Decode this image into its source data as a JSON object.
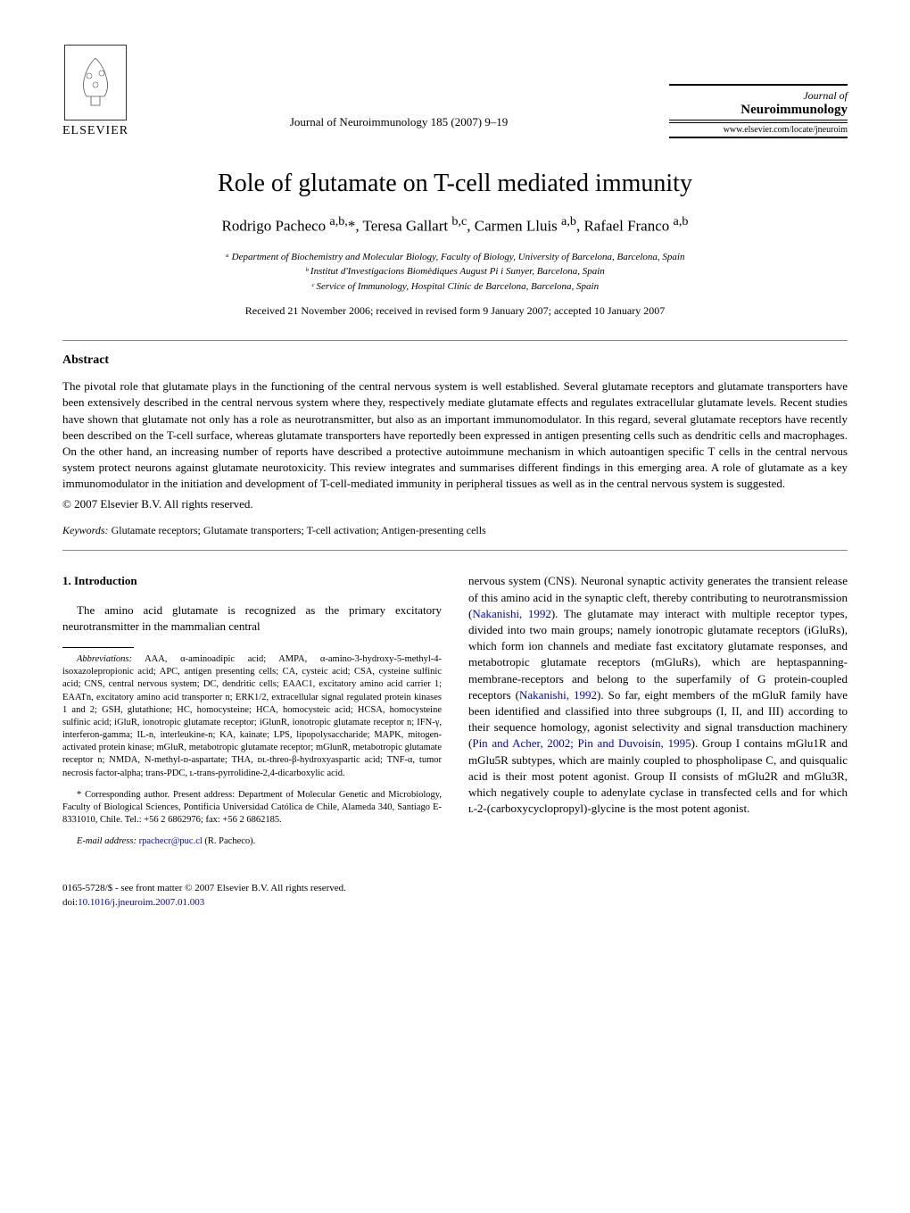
{
  "header": {
    "publisher_name": "ELSEVIER",
    "journal_ref": "Journal of Neuroimmunology 185 (2007) 9–19",
    "journal_of": "Journal of",
    "journal_name": "Neuroimmunology",
    "journal_url": "www.elsevier.com/locate/jneuroim"
  },
  "title": "Role of glutamate on T-cell mediated immunity",
  "authors_html": "Rodrigo Pacheco <sup>a,b,</sup>*, Teresa Gallart <sup>b,c</sup>, Carmen Lluis <sup>a,b</sup>, Rafael Franco <sup>a,b</sup>",
  "affiliations": [
    "ᵃ Department of Biochemistry and Molecular Biology, Faculty of Biology, University of Barcelona, Barcelona, Spain",
    "ᵇ Institut d'Investigacions Biomèdiques August Pi i Sunyer, Barcelona, Spain",
    "ᶜ Service of Immunology, Hospital Clínic de Barcelona, Barcelona, Spain"
  ],
  "dates": "Received 21 November 2006; received in revised form 9 January 2007; accepted 10 January 2007",
  "abstract": {
    "heading": "Abstract",
    "text": "The pivotal role that glutamate plays in the functioning of the central nervous system is well established. Several glutamate receptors and glutamate transporters have been extensively described in the central nervous system where they, respectively mediate glutamate effects and regulates extracellular glutamate levels. Recent studies have shown that glutamate not only has a role as neurotransmitter, but also as an important immunomodulator. In this regard, several glutamate receptors have recently been described on the T-cell surface, whereas glutamate transporters have reportedly been expressed in antigen presenting cells such as dendritic cells and macrophages. On the other hand, an increasing number of reports have described a protective autoimmune mechanism in which autoantigen specific T cells in the central nervous system protect neurons against glutamate neurotoxicity. This review integrates and summarises different findings in this emerging area. A role of glutamate as a key immunomodulator in the initiation and development of T-cell-mediated immunity in peripheral tissues as well as in the central nervous system is suggested.",
    "copyright": "© 2007 Elsevier B.V. All rights reserved."
  },
  "keywords": {
    "label": "Keywords:",
    "text": " Glutamate receptors; Glutamate transporters; T-cell activation; Antigen-presenting cells"
  },
  "intro": {
    "heading": "1. Introduction",
    "p1": "The amino acid glutamate is recognized as the primary excitatory neurotransmitter in the mammalian central",
    "right_p1_part1": "nervous system (CNS). Neuronal synaptic activity generates the transient release of this amino acid in the synaptic cleft, thereby contributing to neurotransmission (",
    "right_ref1": "Nakanishi, 1992",
    "right_p1_part2": "). The glutamate may interact with multiple receptor types, divided into two main groups; namely ionotropic glutamate receptors (iGluRs), which form ion channels and mediate fast excitatory glutamate responses, and metabotropic glutamate receptors (mGluRs), which are heptaspanning-membrane-receptors and belong to the superfamily of G protein-coupled receptors (",
    "right_ref2": "Nakanishi, 1992",
    "right_p1_part3": "). So far, eight members of the mGluR family have been identified and classified into three subgroups (I, II, and III) according to their sequence homology, agonist selectivity and signal transduction machinery (",
    "right_ref3": "Pin and Acher, 2002; Pin and Duvoisin, 1995",
    "right_p1_part4": "). Group I contains mGlu1R and mGlu5R subtypes, which are mainly coupled to phospholipase C, and quisqualic acid is their most potent agonist. Group II consists of mGlu2R and mGlu3R, which negatively couple to adenylate cyclase in transfected cells and for which ʟ-2-(carboxycyclopropyl)-glycine is the most potent agonist."
  },
  "footnotes": {
    "abbrev_label": "Abbreviations:",
    "abbrev_text": " AAA, α-aminoadipic acid; AMPA, α-amino-3-hydroxy-5-methyl-4-isoxazolepropionic acid; APC, antigen presenting cells; CA, cysteic acid; CSA, cysteine sulfinic acid; CNS, central nervous system; DC, dendritic cells; EAAC1, excitatory amino acid carrier 1; EAATn, excitatory amino acid transporter n; ERK1/2, extracellular signal regulated protein kinases 1 and 2; GSH, glutathione; HC, homocysteine; HCA, homocysteic acid; HCSA, homocysteine sulfinic acid; iGluR, ionotropic glutamate receptor; iGlunR, ionotropic glutamate receptor n; IFN-γ, interferon-gamma; IL-n, interleukine-n; KA, kainate; LPS, lipopolysaccharide; MAPK, mitogen-activated protein kinase; mGluR, metabotropic glutamate receptor; mGlunR, metabotropic glutamate receptor n; NMDA, N-methyl-ᴅ-aspartate; THA, ᴅʟ-threo-β-hydroxyaspartic acid; TNF-α, tumor necrosis factor-alpha; trans-PDC, ʟ-trans-pyrrolidine-2,4-dicarboxylic acid.",
    "corresp": "* Corresponding author. Present address: Department of Molecular Genetic and Microbiology, Faculty of Biological Sciences, Pontificia Universidad Católica de Chile, Alameda 340, Santiago E-8331010, Chile. Tel.: +56 2 6862976; fax: +56 2 6862185.",
    "email_label": "E-mail address:",
    "email": " rpachecr@puc.cl",
    "email_suffix": " (R. Pacheco)."
  },
  "footer": {
    "line1": "0165-5728/$ - see front matter © 2007 Elsevier B.V. All rights reserved.",
    "doi_label": "doi:",
    "doi": "10.1016/j.jneuroim.2007.01.003"
  },
  "colors": {
    "text": "#000000",
    "link": "#0000cc",
    "rule": "#888888",
    "background": "#ffffff"
  },
  "typography": {
    "title_fontsize": 28,
    "authors_fontsize": 17,
    "body_fontsize": 13,
    "footnote_fontsize": 10.5,
    "font_family": "Times New Roman"
  }
}
